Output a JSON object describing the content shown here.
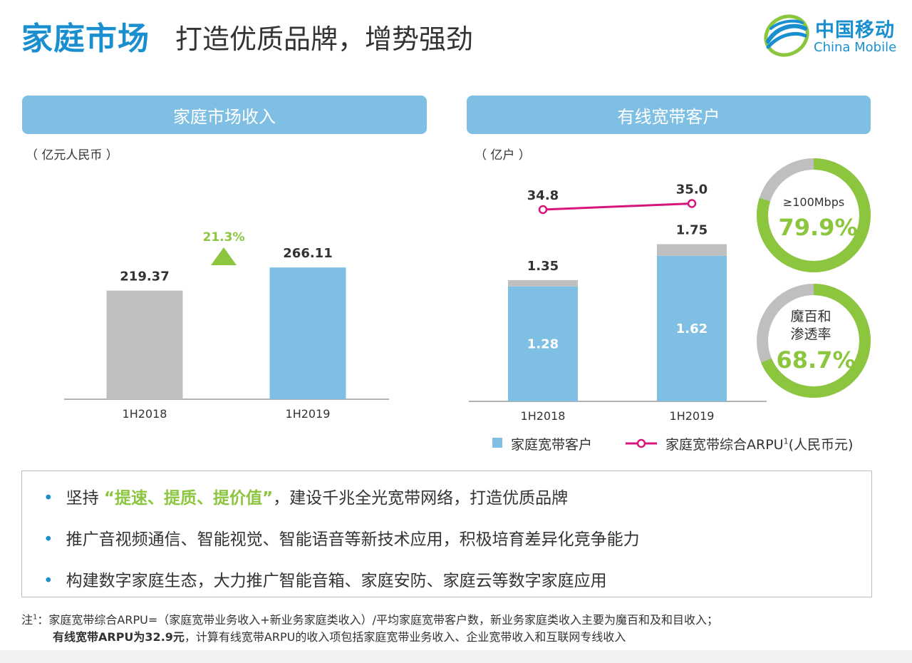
{
  "header": {
    "title_main": "家庭市场",
    "title_sub": "打造优质品牌，增势强劲",
    "logo_cn": "中国移动",
    "logo_en": "China Mobile"
  },
  "left_panel": {
    "header": "家庭市场收入",
    "unit": "（ 亿元人民币 ）",
    "growth_label": "21.3%"
  },
  "right_panel": {
    "header": "有线宽带客户",
    "unit": "（ 亿户 ）",
    "donut1": {
      "label": "≥100Mbps",
      "value_text": "79.9%",
      "value": 79.9
    },
    "donut2": {
      "label_line1": "魔百和",
      "label_line2": "渗透率",
      "value_text": "68.7%",
      "value": 68.7
    },
    "legend": {
      "bar": "家庭宽带客户",
      "line": "家庭宽带综合ARPU",
      "line_sup": "1",
      "line_suffix": "(人民币元)"
    }
  },
  "bullets": [
    {
      "pre": "坚持 ",
      "hl": "“提速、提质、提价值”",
      "post": "，建设千兆全光宽带网络，打造优质品牌"
    },
    {
      "pre": "推广音视频通信、智能视觉、智能语音等新技术应用，积极培育差异化竞争能力",
      "hl": "",
      "post": ""
    },
    {
      "pre": "构建数字家庭生态，大力推广智能音箱、家庭安防、家庭云等数字家庭应用",
      "hl": "",
      "post": ""
    }
  ],
  "note": {
    "prefix": "注",
    "sup": "1",
    "line1": "：家庭宽带综合ARPU=（家庭宽带业务收入+新业务家庭类收入）/平均家庭宽带客户数，新业务家庭类收入主要为魔百和及和目收入；",
    "line2_bold": "有线宽带ARPU为32.9元",
    "line2_rest": "，计算有线宽带ARPU的收入项包括家庭宽带业务收入、企业宽带收入和互联网专线收入"
  },
  "colors": {
    "brand_blue": "#1a8fd0",
    "bar_blue": "#7fbfe4",
    "bar_gray": "#bfbfbf",
    "accent_green": "#8cc63f",
    "line_magenta": "#d6157c"
  },
  "chart_data": [
    {
      "type": "bar",
      "title": "家庭市场收入",
      "ylabel": "（ 亿元人民币 ）",
      "categories": [
        "1H2018",
        "1H2019"
      ],
      "values": [
        219.37,
        266.11
      ],
      "value_labels": [
        "219.37",
        "266.11"
      ],
      "growth": "21.3%"
    },
    {
      "type": "bar",
      "title": "有线宽带客户",
      "ylabel": "（ 亿户 ）",
      "categories": [
        "1H2018",
        "1H2019"
      ],
      "series": [
        {
          "name": "家庭宽带客户",
          "values": [
            1.28,
            1.62
          ],
          "labels": [
            "1.28",
            "1.62"
          ]
        },
        {
          "name": "",
          "values": [
            0.07,
            0.13
          ]
        }
      ],
      "totals": [
        1.35,
        1.75
      ],
      "total_labels": [
        "1.35",
        "1.75"
      ],
      "line_series": {
        "name": "家庭宽带综合ARPU",
        "values": [
          34.8,
          35.0
        ],
        "labels": [
          "34.8",
          "35.0"
        ]
      }
    }
  ]
}
